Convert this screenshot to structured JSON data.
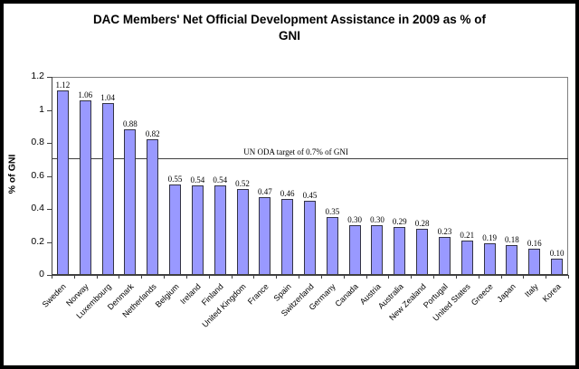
{
  "window": {
    "background": "#ffffff",
    "frame_color": "#000000"
  },
  "colors": {
    "bar_fill": "#9999ff",
    "bar_border": "#333344",
    "axis": "#404040",
    "plot_border": "#808080",
    "text": "#000000"
  },
  "chart_data": {
    "type": "bar",
    "title": "DAC Members' Net Official Development Assistance in 2009 as % of\nGNI",
    "xlabel": "",
    "ylabel": "% of GNI",
    "ylim": [
      0,
      1.2
    ],
    "ytick_values": [
      0,
      0.2,
      0.4,
      0.6,
      0.8,
      1,
      1.2
    ],
    "ytick_labels": [
      "0",
      "0.2",
      "0.4",
      "0.6",
      "0.8",
      "1",
      "1.2"
    ],
    "grid": false,
    "legend": "none",
    "data_labels_shown": true,
    "categories": [
      "Sweden",
      "Norway",
      "Luxembourg",
      "Denmark",
      "Netherlands",
      "Belgium",
      "Ireland",
      "Finland",
      "United Kingdom",
      "France",
      "Spain",
      "Switzerland",
      "Germany",
      "Canada",
      "Austria",
      "Australia",
      "New Zealand",
      "Portugal",
      "United States",
      "Greece",
      "Japan",
      "Italy",
      "Korea"
    ],
    "values": [
      1.12,
      1.06,
      1.04,
      0.88,
      0.82,
      0.55,
      0.54,
      0.54,
      0.52,
      0.47,
      0.46,
      0.45,
      0.35,
      0.3,
      0.3,
      0.29,
      0.28,
      0.23,
      0.21,
      0.19,
      0.18,
      0.16,
      0.1
    ],
    "data_labels": [
      "1.12",
      "1.06",
      "1.04",
      "0.88",
      "0.82",
      "0.55",
      "0.54",
      "0.54",
      "0.52",
      "0.47",
      "0.46",
      "0.45",
      "0.35",
      "0.30",
      "0.30",
      "0.29",
      "0.28",
      "0.23",
      "0.21",
      "0.19",
      "0.18",
      "0.16",
      "0.10"
    ],
    "reference_line": {
      "value": 0.7,
      "label": "UN ODA target of 0.7% of GNI"
    }
  }
}
